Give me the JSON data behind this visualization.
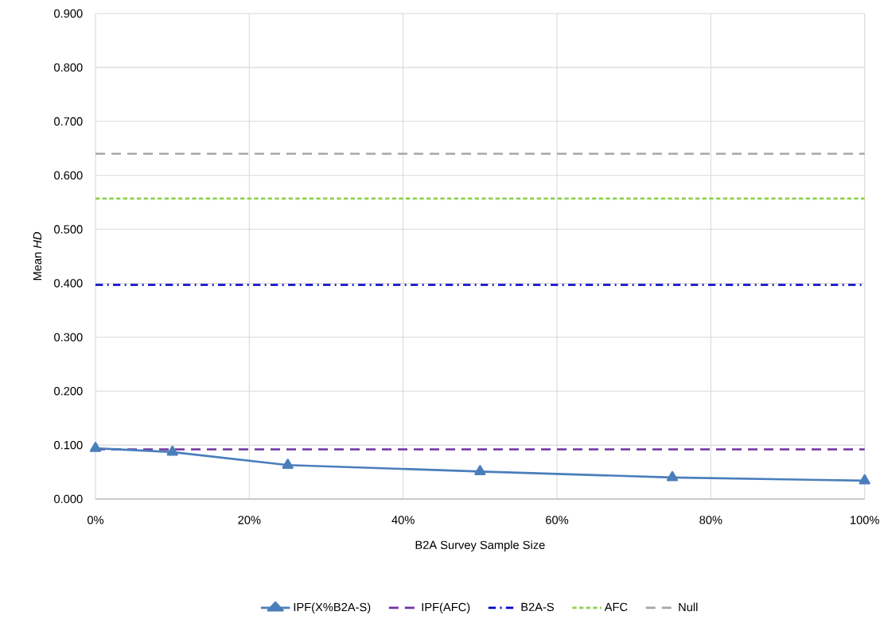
{
  "chart_data": {
    "type": "line",
    "xlabel": "B2A Survey Sample Size",
    "ylabel": "Mean *HD*",
    "x": [
      0,
      0.1,
      0.25,
      0.5,
      0.75,
      1
    ],
    "series": [
      {
        "name": "IPF(X%B2A-S)",
        "color": "#4a7ebb",
        "values": [
          0.094,
          0.087,
          0.063,
          0.051,
          0.04,
          0.034
        ],
        "marker": "triangle",
        "line_style": "solid"
      },
      {
        "name": "IPF(AFC)",
        "color": "#7030a0",
        "values": [
          0.092,
          0.092,
          0.092,
          0.092,
          0.092,
          0.092
        ],
        "marker": "none",
        "line_style": "dashed"
      },
      {
        "name": "B2A-S",
        "color": "#0000cc",
        "values": [
          0.397,
          0.397,
          0.397,
          0.397,
          0.397,
          0.397
        ],
        "marker": "none",
        "line_style": "dashdot"
      },
      {
        "name": "AFC",
        "color": "#92d050",
        "values": [
          0.557,
          0.557,
          0.557,
          0.557,
          0.557,
          0.557
        ],
        "marker": "none",
        "line_style": "dotted"
      },
      {
        "name": "Null",
        "color": "#a6a6a6",
        "values": [
          0.64,
          0.64,
          0.64,
          0.64,
          0.64,
          0.64
        ],
        "marker": "none",
        "line_style": "dashed"
      }
    ],
    "xlim": [
      0,
      1
    ],
    "ylim": [
      0,
      0.9
    ],
    "xticks": [
      {
        "value": 0,
        "label": "0%"
      },
      {
        "value": 0.2,
        "label": "20%"
      },
      {
        "value": 0.4,
        "label": "40%"
      },
      {
        "value": 0.6,
        "label": "60%"
      },
      {
        "value": 0.8,
        "label": "80%"
      },
      {
        "value": 1,
        "label": "100%"
      }
    ],
    "yticks": [
      {
        "value": 0,
        "label": "0.000"
      },
      {
        "value": 0.1,
        "label": "0.100"
      },
      {
        "value": 0.2,
        "label": "0.200"
      },
      {
        "value": 0.3,
        "label": "0.300"
      },
      {
        "value": 0.4,
        "label": "0.400"
      },
      {
        "value": 0.5,
        "label": "0.500"
      },
      {
        "value": 0.6,
        "label": "0.600"
      },
      {
        "value": 0.7,
        "label": "0.700"
      },
      {
        "value": 0.8,
        "label": "0.800"
      },
      {
        "value": 0.9,
        "label": "0.900"
      }
    ],
    "grid": true,
    "legend": "bottom"
  }
}
